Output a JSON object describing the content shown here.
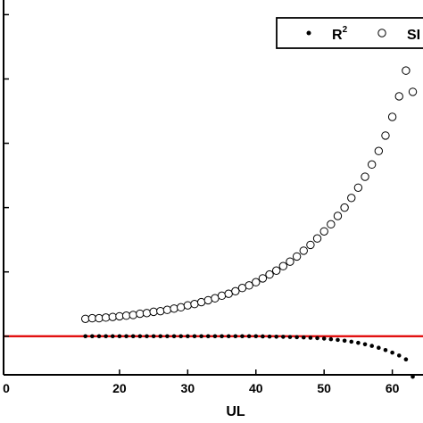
{
  "chart_data": {
    "type": "scatter",
    "xlabel": "UL",
    "ylabel": "",
    "title": "",
    "xlim": [
      3,
      64.5
    ],
    "ylim": [
      -0.6,
      5.2
    ],
    "x_ticks": [
      0,
      20,
      30,
      40,
      50,
      60
    ],
    "x_tick_labels": [
      "0",
      "20",
      "30",
      "40",
      "50",
      "60"
    ],
    "y_ticks": [
      0,
      1,
      2,
      3,
      4,
      5
    ],
    "legend_position": "top-right",
    "legend_text": {
      "r2_base": "R",
      "r2_sup": "2",
      "sf": "SI"
    },
    "reference_line": {
      "y": 0,
      "color": "#e00000"
    },
    "series": [
      {
        "name": "R2",
        "marker": "filled-dot",
        "color": "#000000",
        "x": [
          15,
          16,
          17,
          18,
          19,
          20,
          21,
          22,
          23,
          24,
          25,
          26,
          27,
          28,
          29,
          30,
          31,
          32,
          33,
          34,
          35,
          36,
          37,
          38,
          39,
          40,
          41,
          42,
          43,
          44,
          45,
          46,
          47,
          48,
          49,
          50,
          51,
          52,
          53,
          54,
          55,
          56,
          57,
          58,
          59,
          60,
          61,
          62,
          63
        ],
        "y": [
          0,
          0,
          0,
          0,
          0,
          0,
          0,
          0,
          0,
          0,
          0,
          0,
          0,
          0,
          0,
          0,
          0,
          0,
          0,
          0,
          0,
          0,
          0,
          0,
          0,
          0,
          -0.003,
          -0.005,
          -0.007,
          -0.009,
          -0.012,
          -0.015,
          -0.019,
          -0.024,
          -0.03,
          -0.037,
          -0.046,
          -0.057,
          -0.07,
          -0.085,
          -0.103,
          -0.125,
          -0.15,
          -0.18,
          -0.215,
          -0.255,
          -0.3,
          -0.36,
          -0.63
        ]
      },
      {
        "name": "SI",
        "marker": "open-circle",
        "color": "#000000",
        "x": [
          15,
          16,
          17,
          18,
          19,
          20,
          21,
          22,
          23,
          24,
          25,
          26,
          27,
          28,
          29,
          30,
          31,
          32,
          33,
          34,
          35,
          36,
          37,
          38,
          39,
          40,
          41,
          42,
          43,
          44,
          45,
          46,
          47,
          48,
          49,
          50,
          51,
          52,
          53,
          54,
          55,
          56,
          57,
          58,
          59,
          60,
          61,
          62,
          63
        ],
        "y": [
          0.27,
          0.28,
          0.28,
          0.29,
          0.3,
          0.31,
          0.32,
          0.33,
          0.35,
          0.36,
          0.38,
          0.39,
          0.41,
          0.43,
          0.45,
          0.48,
          0.5,
          0.53,
          0.56,
          0.59,
          0.63,
          0.66,
          0.7,
          0.75,
          0.79,
          0.84,
          0.9,
          0.96,
          1.02,
          1.09,
          1.16,
          1.24,
          1.33,
          1.42,
          1.52,
          1.63,
          1.74,
          1.87,
          2.0,
          2.15,
          2.31,
          2.48,
          2.67,
          2.88,
          3.12,
          3.41,
          3.73,
          4.13,
          3.8
        ]
      }
    ]
  }
}
